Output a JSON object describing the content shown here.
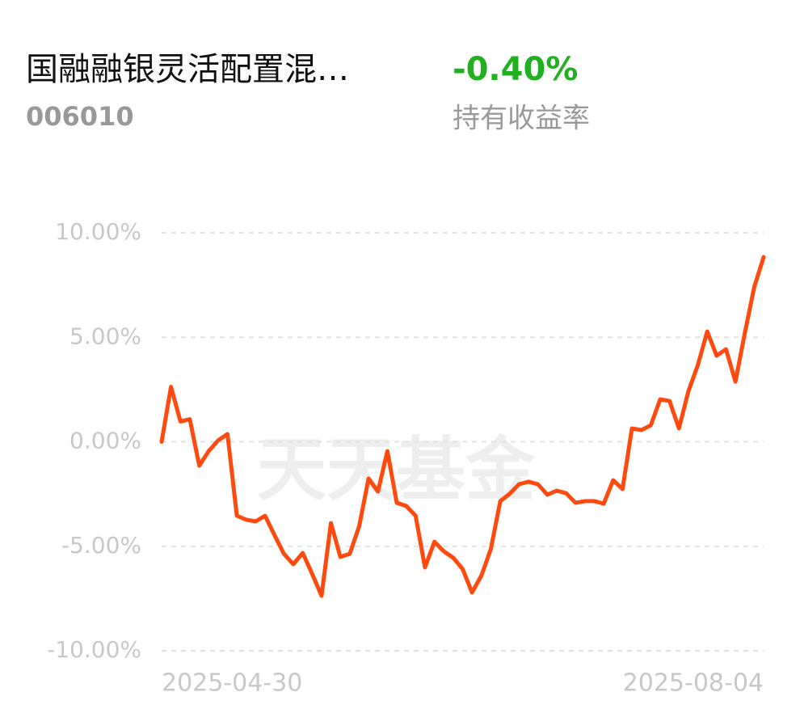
{
  "header": {
    "title": "国融融银灵活配置混…",
    "code": "006010",
    "return_value": "-0.40%",
    "return_label": "持有收益率"
  },
  "watermark": "天天基金",
  "chart_data": {
    "type": "line",
    "color": "#ff4a0f",
    "grid": true,
    "ylim": [
      -10,
      10
    ],
    "yticks": [
      {
        "value": 10,
        "label": "10.00%"
      },
      {
        "value": 5,
        "label": "5.00%"
      },
      {
        "value": 0,
        "label": "0.00%"
      },
      {
        "value": -5,
        "label": "-5.00%"
      },
      {
        "value": -10,
        "label": "-10.00%"
      }
    ],
    "categories": [
      "2025-04-30",
      null,
      null,
      null,
      null,
      null,
      null,
      null,
      null,
      null,
      null,
      null,
      null,
      null,
      null,
      null,
      null,
      null,
      null,
      null,
      null,
      null,
      null,
      null,
      null,
      null,
      null,
      null,
      null,
      null,
      null,
      null,
      null,
      null,
      null,
      null,
      null,
      null,
      null,
      null,
      null,
      null,
      null,
      null,
      null,
      null,
      null,
      null,
      null,
      null,
      null,
      null,
      null,
      null,
      null,
      null,
      null,
      null,
      null,
      null,
      null,
      null,
      null,
      null,
      "2025-08-04"
    ],
    "values": [
      0,
      2.63,
      0.97,
      1.08,
      -1.14,
      -0.45,
      0.06,
      0.37,
      -3.54,
      -3.73,
      -3.81,
      -3.54,
      -4.47,
      -5.36,
      -5.86,
      -5.32,
      -6.32,
      -7.37,
      -3.89,
      -5.51,
      -5.36,
      -4.04,
      -1.76,
      -2.38,
      -0.45,
      -2.92,
      -3.07,
      -3.54,
      -6.01,
      -4.78,
      -5.24,
      -5.55,
      -6.09,
      -7.21,
      -6.4,
      -5.13,
      -2.84,
      -2.49,
      -2.03,
      -1.91,
      -2.03,
      -2.53,
      -2.34,
      -2.46,
      -2.92,
      -2.84,
      -2.84,
      -2.96,
      -1.84,
      -2.26,
      0.64,
      0.56,
      0.79,
      2.03,
      1.95,
      0.64,
      2.42,
      3.66,
      5.28,
      4.12,
      4.43,
      2.88,
      5.2,
      7.41,
      8.84
    ]
  }
}
